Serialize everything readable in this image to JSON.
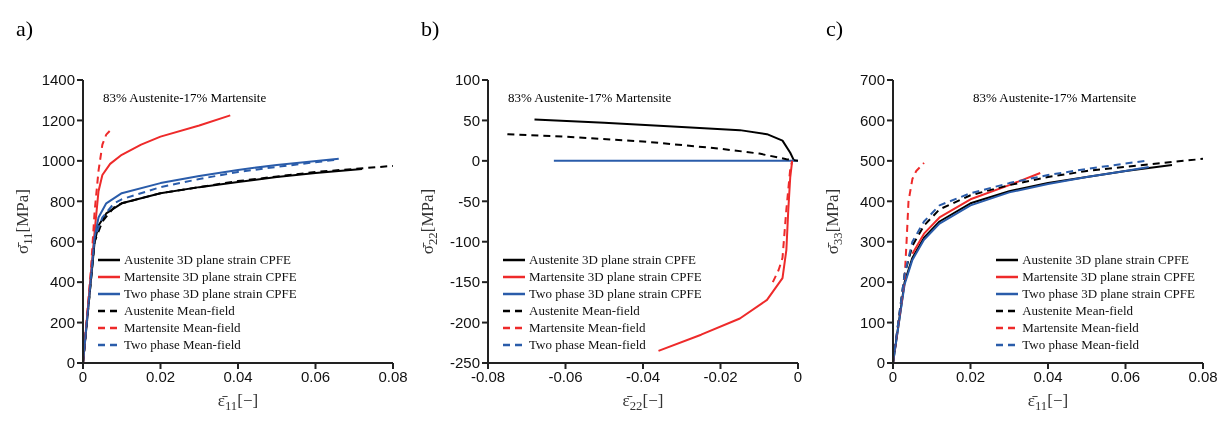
{
  "chart_data": [
    {
      "type": "line",
      "title": "a)",
      "xlabel": "ε̄$_{11}$[−]",
      "ylabel": "σ̄$_{11}$[MPa]",
      "annotations": [
        "83% Austenite-17% Martensite"
      ],
      "xlim": [
        0,
        0.08
      ],
      "xticks": [
        0,
        0.02,
        0.04,
        0.06,
        0.08
      ],
      "ylim": [
        0,
        1400
      ],
      "yticks": [
        0,
        200,
        400,
        600,
        800,
        1000,
        1200,
        1400
      ],
      "grid": false,
      "legend": "bottom left",
      "marker": "none",
      "series": [
        {
          "name": "Austenite 3D plane strain CPFE",
          "color": "#000000",
          "line_style": "solid",
          "x": [
            0,
            0.003,
            0.004,
            0.006,
            0.01,
            0.02,
            0.03,
            0.04,
            0.05,
            0.06,
            0.072
          ],
          "values": [
            0,
            600,
            680,
            740,
            790,
            840,
            870,
            895,
            920,
            940,
            960
          ]
        },
        {
          "name": "Martensite 3D plane strain CPFE",
          "color": "#ee2a2a",
          "line_style": "solid",
          "x": [
            0,
            0.003,
            0.004,
            0.005,
            0.007,
            0.01,
            0.015,
            0.02,
            0.03,
            0.038
          ],
          "values": [
            0,
            650,
            850,
            930,
            985,
            1030,
            1080,
            1120,
            1175,
            1225
          ]
        },
        {
          "name": "Two phase 3D plane strain CPFE",
          "color": "#2a5caa",
          "line_style": "solid",
          "x": [
            0,
            0.003,
            0.004,
            0.006,
            0.01,
            0.02,
            0.03,
            0.04,
            0.05,
            0.066
          ],
          "values": [
            0,
            620,
            720,
            790,
            840,
            890,
            925,
            955,
            980,
            1010
          ]
        },
        {
          "name": "Austenite Mean-field",
          "color": "#000000",
          "line_style": "dashed",
          "x": [
            0,
            0.003,
            0.005,
            0.008,
            0.01,
            0.02,
            0.03,
            0.04,
            0.06,
            0.08
          ],
          "values": [
            0,
            600,
            700,
            770,
            790,
            840,
            870,
            900,
            945,
            975
          ]
        },
        {
          "name": "Martensite Mean-field",
          "color": "#ee2a2a",
          "line_style": "dashed",
          "x": [
            0,
            0.002,
            0.003,
            0.004,
            0.005,
            0.006,
            0.0075
          ],
          "values": [
            0,
            450,
            750,
            950,
            1080,
            1130,
            1160
          ]
        },
        {
          "name": "Two phase Mean-field",
          "color": "#2a5caa",
          "line_style": "dashed",
          "x": [
            0,
            0.003,
            0.005,
            0.008,
            0.01,
            0.02,
            0.03,
            0.04,
            0.05,
            0.065
          ],
          "values": [
            0,
            620,
            720,
            790,
            810,
            870,
            910,
            945,
            970,
            1005
          ]
        }
      ]
    },
    {
      "type": "line",
      "title": "b)",
      "xlabel": "ε̄$_{22}$[−]",
      "ylabel": "σ̄$_{22}$[MPa]",
      "annotations": [
        "83% Austenite-17% Martensite"
      ],
      "xlim": [
        -0.08,
        0
      ],
      "xticks": [
        -0.08,
        -0.06,
        -0.04,
        -0.02,
        0
      ],
      "ylim": [
        -250,
        100
      ],
      "yticks": [
        -250,
        -200,
        -150,
        -100,
        -50,
        0,
        50,
        100
      ],
      "grid": false,
      "legend": "bottom left",
      "marker": "none",
      "series": [
        {
          "name": "Austenite 3D plane strain CPFE",
          "color": "#000000",
          "line_style": "solid",
          "x": [
            -0.068,
            -0.05,
            -0.03,
            -0.015,
            -0.008,
            -0.004,
            -0.002,
            -0.001
          ],
          "values": [
            51,
            47,
            42,
            38,
            33,
            25,
            10,
            0
          ]
        },
        {
          "name": "Martensite 3D plane strain CPFE",
          "color": "#ee2a2a",
          "line_style": "solid",
          "x": [
            -0.036,
            -0.025,
            -0.015,
            -0.008,
            -0.004,
            -0.003,
            -0.0025,
            -0.002,
            -0.0015
          ],
          "values": [
            -235,
            -215,
            -195,
            -172,
            -145,
            -110,
            -60,
            -20,
            0
          ]
        },
        {
          "name": "Two phase 3D plane strain CPFE",
          "color": "#2a5caa",
          "line_style": "solid",
          "x": [
            -0.063,
            0
          ],
          "values": [
            0,
            0
          ]
        },
        {
          "name": "Austenite Mean-field",
          "color": "#000000",
          "line_style": "dashed",
          "x": [
            -0.075,
            -0.06,
            -0.04,
            -0.02,
            -0.01,
            -0.003,
            0
          ],
          "values": [
            33,
            30,
            24,
            15,
            9,
            2,
            0
          ]
        },
        {
          "name": "Martensite Mean-field",
          "color": "#ee2a2a",
          "line_style": "dashed",
          "x": [
            -0.0065,
            -0.005,
            -0.004,
            -0.003,
            -0.002,
            -0.0015
          ],
          "values": [
            -150,
            -135,
            -120,
            -60,
            -10,
            0
          ]
        },
        {
          "name": "Two phase Mean-field",
          "color": "#2a5caa",
          "line_style": "dashed"
        }
      ]
    },
    {
      "type": "line",
      "title": "c)",
      "xlabel": "ε̄$_{11}$[−]",
      "ylabel": "σ̄$_{33}$[MPa]",
      "annotations": [
        "83% Austenite-17% Martensite"
      ],
      "xlim": [
        0,
        0.08
      ],
      "xticks": [
        0,
        0.02,
        0.04,
        0.06,
        0.08
      ],
      "ylim": [
        0,
        700
      ],
      "yticks": [
        0,
        100,
        200,
        300,
        400,
        500,
        600,
        700
      ],
      "grid": false,
      "legend": "bottom right",
      "marker": "none",
      "series": [
        {
          "name": "Austenite 3D plane strain CPFE",
          "color": "#000000",
          "line_style": "solid",
          "x": [
            0,
            0.003,
            0.005,
            0.008,
            0.012,
            0.02,
            0.03,
            0.04,
            0.05,
            0.06,
            0.072
          ],
          "values": [
            0,
            200,
            260,
            310,
            350,
            395,
            425,
            445,
            460,
            475,
            490
          ]
        },
        {
          "name": "Martensite 3D plane strain CPFE",
          "color": "#ee2a2a",
          "line_style": "solid",
          "x": [
            0.005,
            0.008,
            0.012,
            0.02,
            0.03,
            0.038
          ],
          "values": [
            270,
            320,
            360,
            405,
            440,
            470
          ]
        },
        {
          "name": "Two phase 3D plane strain CPFE",
          "color": "#2a5caa",
          "line_style": "solid",
          "x": [
            0,
            0.003,
            0.005,
            0.008,
            0.012,
            0.02,
            0.03,
            0.04,
            0.05,
            0.06,
            0.066
          ],
          "values": [
            0,
            195,
            255,
            305,
            345,
            390,
            422,
            443,
            460,
            475,
            485
          ]
        },
        {
          "name": "Austenite Mean-field",
          "color": "#000000",
          "line_style": "dashed",
          "x": [
            0,
            0.003,
            0.005,
            0.008,
            0.012,
            0.02,
            0.03,
            0.04,
            0.05,
            0.06,
            0.08
          ],
          "values": [
            0,
            220,
            290,
            340,
            380,
            415,
            440,
            460,
            475,
            485,
            505
          ]
        },
        {
          "name": "Martensite Mean-field",
          "color": "#ee2a2a",
          "line_style": "dashed",
          "x": [
            0,
            0.003,
            0.0035,
            0.004,
            0.005,
            0.006,
            0.008
          ],
          "values": [
            0,
            210,
            300,
            400,
            455,
            475,
            495
          ]
        },
        {
          "name": "Two phase Mean-field",
          "color": "#2a5caa",
          "line_style": "dashed",
          "x": [
            0,
            0.003,
            0.005,
            0.008,
            0.012,
            0.02,
            0.03,
            0.04,
            0.05,
            0.065
          ],
          "values": [
            0,
            220,
            300,
            350,
            390,
            420,
            445,
            465,
            480,
            500
          ]
        }
      ]
    }
  ]
}
